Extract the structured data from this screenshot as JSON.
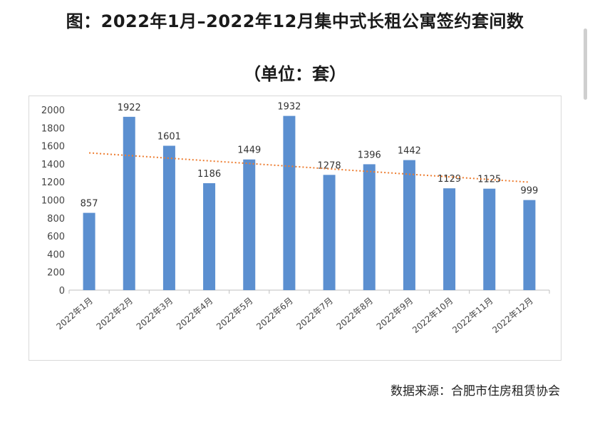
{
  "title": "图：2022年1月–2022年12月集中式长租公寓签约套间数",
  "subtitle": "（单位：套）",
  "source": "数据来源：合肥市住房租赁协会",
  "chart_data": {
    "type": "bar",
    "categories": [
      "2022年1月",
      "2022年2月",
      "2022年3月",
      "2022年4月",
      "2022年5月",
      "2022年6月",
      "2022年7月",
      "2022年8月",
      "2022年9月",
      "2022年10月",
      "2022年11月",
      "2022年12月"
    ],
    "values": [
      857,
      1922,
      1601,
      1186,
      1449,
      1932,
      1278,
      1396,
      1442,
      1129,
      1125,
      999
    ],
    "ylim": [
      0,
      2000
    ],
    "yticks": [
      0,
      200,
      400,
      600,
      800,
      1000,
      1200,
      1400,
      1600,
      1800,
      2000
    ],
    "bar_color": "#5b8fd0",
    "trendline": true,
    "trendline_color": "#ed7d31",
    "grid": false,
    "legend": "none"
  }
}
